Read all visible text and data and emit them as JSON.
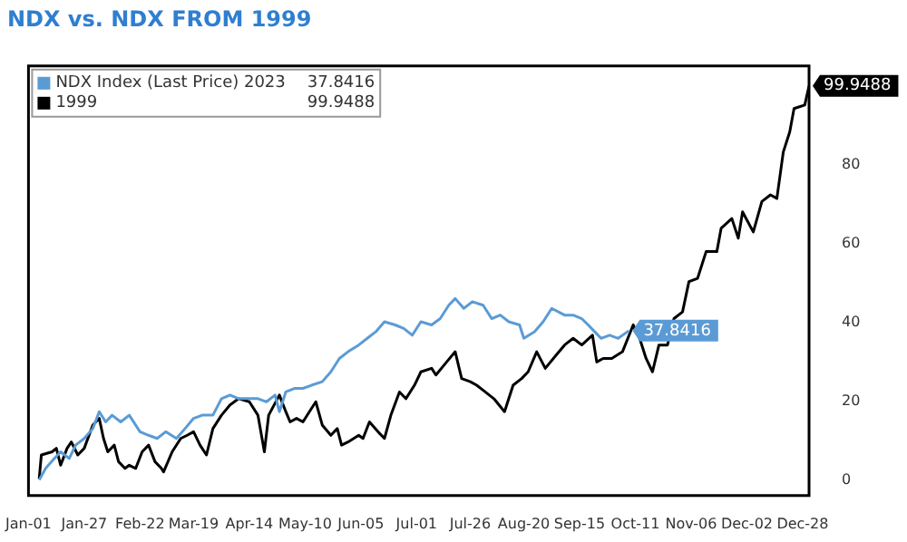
{
  "chart_data": {
    "type": "line",
    "title": "NDX vs. NDX FROM 1999",
    "legend": "top left",
    "grid": false,
    "marker": "none",
    "line_style": "solid",
    "xlim": [
      "--01-01",
      "--12-31"
    ],
    "xticks": [
      {
        "value": "--01-01",
        "label": "Jan-01"
      },
      {
        "value": "--01-27",
        "label": "Jan-27"
      },
      {
        "value": "--02-22",
        "label": "Feb-22"
      },
      {
        "value": "--03-19",
        "label": "Mar-19"
      },
      {
        "value": "--04-14",
        "label": "Apr-14"
      },
      {
        "value": "--05-10",
        "label": "May-10"
      },
      {
        "value": "--06-05",
        "label": "Jun-05"
      },
      {
        "value": "--07-01",
        "label": "Jul-01"
      },
      {
        "value": "--07-26",
        "label": "Jul-26"
      },
      {
        "value": "--08-20",
        "label": "Aug-20"
      },
      {
        "value": "--09-15",
        "label": "Sep-15"
      },
      {
        "value": "--10-11",
        "label": "Oct-11"
      },
      {
        "value": "--11-06",
        "label": "Nov-06"
      },
      {
        "value": "--12-02",
        "label": "Dec-02"
      },
      {
        "value": "--12-28",
        "label": "Dec-28"
      }
    ],
    "ylim": [
      -4,
      105
    ],
    "yticks": [
      0,
      20,
      40,
      60,
      80
    ],
    "series": [
      {
        "name": "NDX Index (Last Price) 2023",
        "color": "#5b9bd5",
        "x": [
          "--01-06",
          "--01-09",
          "--01-13",
          "--01-16",
          "--01-20",
          "--01-23",
          "--01-27",
          "--01-31",
          "--02-03",
          "--02-06",
          "--02-09",
          "--02-13",
          "--02-17",
          "--02-22",
          "--02-26",
          "--03-02",
          "--03-06",
          "--03-11",
          "--03-15",
          "--03-19",
          "--03-23",
          "--03-28",
          "--04-01",
          "--04-05",
          "--04-09",
          "--04-14",
          "--04-18",
          "--04-22",
          "--04-26",
          "--04-28",
          "--05-01",
          "--05-05",
          "--05-09",
          "--05-13",
          "--05-18",
          "--05-22",
          "--05-26",
          "--05-30",
          "--06-04",
          "--06-08",
          "--06-12",
          "--06-16",
          "--06-21",
          "--06-25",
          "--06-29",
          "--07-03",
          "--07-08",
          "--07-12",
          "--07-16",
          "--07-19",
          "--07-23",
          "--07-27",
          "--08-01",
          "--08-05",
          "--08-09",
          "--08-13",
          "--08-18",
          "--08-20",
          "--08-25",
          "--08-29",
          "--09-02",
          "--09-08",
          "--09-12",
          "--09-16",
          "--09-19",
          "--09-22",
          "--09-25",
          "--09-29",
          "--10-03",
          "--10-08"
        ],
        "values": [
          0,
          2.9,
          5.4,
          7.1,
          5.4,
          8.8,
          10.5,
          13.0,
          17.3,
          14.7,
          16.4,
          14.7,
          16.4,
          12.2,
          11.3,
          10.5,
          12.2,
          10.5,
          13.0,
          15.6,
          16.4,
          16.4,
          20.6,
          21.5,
          20.6,
          20.6,
          20.6,
          19.8,
          21.5,
          17.3,
          22.3,
          23.2,
          23.2,
          24.0,
          24.9,
          27.4,
          30.8,
          32.5,
          34.2,
          35.9,
          37.6,
          40.1,
          39.3,
          38.4,
          36.7,
          40.1,
          39.3,
          40.9,
          44.3,
          46.0,
          43.5,
          45.2,
          44.3,
          40.9,
          41.8,
          40.1,
          39.3,
          35.9,
          37.6,
          40.1,
          43.5,
          41.8,
          41.8,
          40.9,
          39.3,
          37.6,
          35.9,
          36.7,
          35.9,
          37.8416
        ],
        "value_labels": [
          null,
          null,
          null,
          null,
          null,
          null,
          null,
          null,
          null,
          null,
          null,
          null,
          null,
          null,
          null,
          null,
          null,
          null,
          null,
          null,
          null,
          null,
          null,
          null,
          null,
          null,
          null,
          null,
          null,
          null,
          null,
          null,
          null,
          null,
          null,
          null,
          null,
          null,
          null,
          null,
          null,
          null,
          null,
          null,
          null,
          null,
          null,
          null,
          null,
          null,
          null,
          null,
          null,
          null,
          null,
          null,
          null,
          null,
          null,
          null,
          null,
          null,
          null,
          null,
          null,
          null,
          null,
          null,
          null,
          "37.8416"
        ]
      },
      {
        "name": "1999",
        "color": "#000000",
        "x": [
          "--01-06",
          "--01-07",
          "--01-12",
          "--01-14",
          "--01-16",
          "--01-19",
          "--01-21",
          "--01-24",
          "--01-27",
          "--01-31",
          "--02-03",
          "--02-05",
          "--02-07",
          "--02-10",
          "--02-12",
          "--02-15",
          "--02-17",
          "--02-20",
          "--02-23",
          "--02-26",
          "--03-01",
          "--03-04",
          "--03-05",
          "--03-09",
          "--03-13",
          "--03-16",
          "--03-19",
          "--03-22",
          "--03-25",
          "--03-28",
          "--04-01",
          "--04-05",
          "--04-09",
          "--04-14",
          "--04-18",
          "--04-21",
          "--04-23",
          "--04-28",
          "--05-01",
          "--05-03",
          "--05-06",
          "--05-09",
          "--05-12",
          "--05-15",
          "--05-18",
          "--05-22",
          "--05-25",
          "--05-27",
          "--05-30",
          "--06-04",
          "--06-06",
          "--06-09",
          "--06-13",
          "--06-16",
          "--06-19",
          "--06-23",
          "--06-26",
          "--06-30",
          "--07-03",
          "--07-08",
          "--07-10",
          "--07-15",
          "--07-19",
          "--07-22",
          "--07-26",
          "--07-29",
          "--08-02",
          "--08-06",
          "--08-11",
          "--08-15",
          "--08-19",
          "--08-22",
          "--08-26",
          "--08-30",
          "--09-04",
          "--09-08",
          "--09-12",
          "--09-16",
          "--09-21",
          "--09-23",
          "--09-26",
          "--09-30",
          "--10-05",
          "--10-10",
          "--10-13",
          "--10-16",
          "--10-19",
          "--10-22",
          "--10-26",
          "--10-29",
          "--11-02",
          "--11-05",
          "--11-09",
          "--11-13",
          "--11-18",
          "--11-20",
          "--11-25",
          "--11-28",
          "--11-30",
          "--12-05",
          "--12-09",
          "--12-13",
          "--12-16",
          "--12-19",
          "--12-22",
          "--12-24",
          "--12-29",
          "--12-31"
        ],
        "values": [
          0.3,
          6.3,
          7.1,
          8.0,
          3.7,
          8.0,
          9.6,
          6.3,
          8.0,
          13.9,
          15.6,
          10.5,
          7.1,
          8.8,
          4.6,
          2.9,
          3.7,
          2.9,
          7.1,
          8.8,
          4.6,
          2.9,
          2.0,
          7.1,
          10.5,
          11.3,
          12.2,
          8.8,
          6.3,
          13.0,
          16.4,
          19.0,
          20.6,
          19.8,
          16.4,
          7.1,
          16.4,
          21.5,
          17.3,
          14.7,
          15.6,
          14.7,
          17.3,
          19.8,
          13.9,
          11.3,
          13.0,
          8.8,
          9.6,
          11.3,
          10.5,
          14.7,
          12.2,
          10.5,
          16.4,
          22.3,
          20.6,
          24.0,
          27.4,
          28.3,
          26.6,
          29.9,
          32.5,
          25.7,
          24.9,
          24.0,
          22.3,
          20.6,
          17.3,
          24.0,
          25.7,
          27.4,
          32.5,
          28.3,
          31.6,
          34.2,
          35.9,
          34.2,
          36.7,
          29.9,
          30.8,
          30.8,
          32.5,
          39.3,
          35.9,
          30.8,
          27.4,
          34.2,
          34.2,
          40.9,
          42.6,
          50.3,
          51.1,
          57.9,
          57.9,
          63.8,
          66.3,
          61.3,
          68.0,
          62.9,
          70.6,
          72.3,
          71.4,
          83.2,
          88.3,
          94.2,
          95.1,
          99.9488
        ],
        "value_labels": [
          null,
          null,
          null,
          null,
          null,
          null,
          null,
          null,
          null,
          null,
          null,
          null,
          null,
          null,
          null,
          null,
          null,
          null,
          null,
          null,
          null,
          null,
          null,
          null,
          null,
          null,
          null,
          null,
          null,
          null,
          null,
          null,
          null,
          null,
          null,
          null,
          null,
          null,
          null,
          null,
          null,
          null,
          null,
          null,
          null,
          null,
          null,
          null,
          null,
          null,
          null,
          null,
          null,
          null,
          null,
          null,
          null,
          null,
          null,
          null,
          null,
          null,
          null,
          null,
          null,
          null,
          null,
          null,
          null,
          null,
          null,
          null,
          null,
          null,
          null,
          null,
          null,
          null,
          null,
          null,
          null,
          null,
          null,
          null,
          null,
          null,
          null,
          null,
          null,
          null,
          null,
          null,
          null,
          null,
          null,
          null,
          null,
          null,
          null,
          null,
          null,
          null,
          null,
          null,
          null,
          null,
          null,
          "99.9488"
        ]
      }
    ]
  }
}
